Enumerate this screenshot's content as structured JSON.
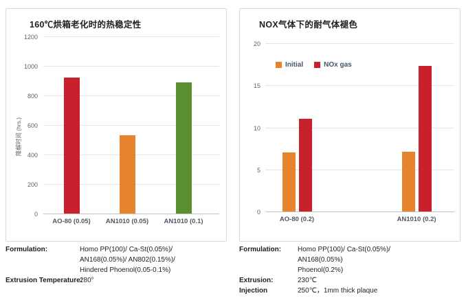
{
  "chart_data": [
    {
      "type": "bar",
      "title": "160℃烘箱老化时的热稳定性",
      "categories": [
        "AO-80 (0.05)",
        "AN1010 (0.05)",
        "AN1010 (0.1)"
      ],
      "values": [
        920,
        530,
        890
      ],
      "bar_colors": [
        "#c9202e",
        "#e8832d",
        "#5a8f31"
      ],
      "xlabel": "",
      "ylabel": "降解时间 (hrs.)",
      "ylim": [
        0,
        1200
      ],
      "yticks": [
        0,
        200,
        400,
        600,
        800,
        1000,
        1200
      ],
      "grid": true,
      "legend": null
    },
    {
      "type": "bar",
      "title": "NOX气体下的耐气体褪色",
      "categories": [
        "AO-80 (0.2)",
        "AN1010 (0.2)"
      ],
      "series": [
        {
          "name": "Initial",
          "color": "#e8832d",
          "values": [
            7,
            7.1
          ]
        },
        {
          "name": "NOx gas",
          "color": "#c9202e",
          "values": [
            11,
            17.3
          ]
        }
      ],
      "xlabel": "",
      "ylabel": "",
      "ylim": [
        0,
        20
      ],
      "yticks": [
        0,
        5,
        10,
        15,
        20
      ],
      "grid": true,
      "legend_position": "top-left"
    }
  ],
  "footnotes": {
    "left": [
      {
        "label": "Formulation:",
        "value_lines": [
          "Homo PP(100)/ Ca-St(0.05%)/",
          "AN168(0.05%)/ AN802(0.15%)/",
          "Hindered Phoenol(0.05-0.1%)"
        ]
      },
      {
        "label": "Extrusion Temperature:",
        "value_lines": [
          "280°"
        ]
      }
    ],
    "right": [
      {
        "label": "Formulation:",
        "value_lines": [
          "Homo PP(100)/ Ca-St(0.05%)/",
          "AN168(0.05%)",
          "Phoenol(0.2%)"
        ]
      },
      {
        "label": "Extrusion:",
        "value_lines": [
          "230℃"
        ]
      },
      {
        "label": "Injection",
        "value_lines": [
          "250℃，1mm thick plaque"
        ]
      }
    ]
  },
  "colors": {
    "red": "#c9202e",
    "orange": "#e8832d",
    "green": "#5a8f31",
    "grid": "#e4e4e4",
    "axis": "#c3c3c3",
    "tick_text": "#5f6368",
    "category_text": "#4e5763",
    "title_text": "#1f1f1f",
    "card_border": "#d9d9d9"
  }
}
